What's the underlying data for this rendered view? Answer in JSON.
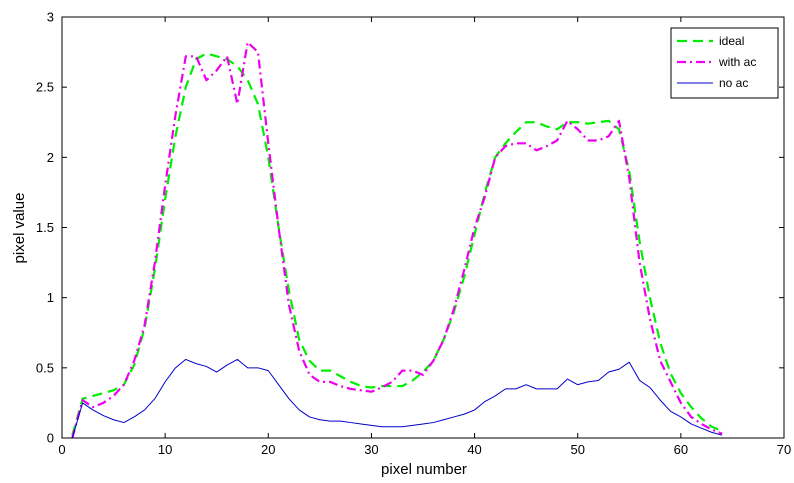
{
  "chart_data": {
    "type": "line",
    "title": "",
    "xlabel": "pixel number",
    "ylabel": "pixel value",
    "xlim": [
      0,
      70
    ],
    "ylim": [
      0,
      3
    ],
    "xticks": [
      0,
      10,
      20,
      30,
      40,
      50,
      60,
      70
    ],
    "yticks": [
      0,
      0.5,
      1,
      1.5,
      2,
      2.5,
      3
    ],
    "xtick_labels": [
      "0",
      "10",
      "20",
      "30",
      "40",
      "50",
      "60",
      "70"
    ],
    "ytick_labels": [
      "0",
      "0.5",
      "1",
      "1.5",
      "2",
      "2.5",
      "3"
    ],
    "grid": false,
    "legend_position": "top-right",
    "series": [
      {
        "name": "ideal",
        "color": "#00ee00",
        "style": "dashed",
        "x": [
          1,
          2,
          3,
          4,
          5,
          6,
          7,
          8,
          9,
          10,
          11,
          12,
          13,
          14,
          15,
          16,
          17,
          18,
          19,
          20,
          21,
          22,
          23,
          24,
          25,
          26,
          27,
          28,
          29,
          30,
          31,
          32,
          33,
          34,
          35,
          36,
          37,
          38,
          39,
          40,
          41,
          42,
          43,
          44,
          45,
          46,
          47,
          48,
          49,
          50,
          51,
          52,
          53,
          54,
          55,
          56,
          57,
          58,
          59,
          60,
          61,
          62,
          63,
          64
        ],
        "y": [
          0.02,
          0.28,
          0.3,
          0.32,
          0.34,
          0.38,
          0.52,
          0.78,
          1.2,
          1.7,
          2.15,
          2.5,
          2.7,
          2.74,
          2.72,
          2.7,
          2.65,
          2.55,
          2.38,
          2.0,
          1.5,
          1.05,
          0.7,
          0.55,
          0.48,
          0.48,
          0.44,
          0.4,
          0.37,
          0.36,
          0.37,
          0.37,
          0.37,
          0.41,
          0.47,
          0.55,
          0.7,
          0.9,
          1.15,
          1.45,
          1.75,
          2.0,
          2.1,
          2.18,
          2.25,
          2.25,
          2.22,
          2.2,
          2.25,
          2.25,
          2.24,
          2.25,
          2.26,
          2.2,
          1.9,
          1.4,
          1.0,
          0.68,
          0.46,
          0.32,
          0.22,
          0.14,
          0.08,
          0.05
        ]
      },
      {
        "name": "with ac",
        "color": "#ee00ee",
        "style": "dashdot",
        "x": [
          1,
          2,
          3,
          4,
          5,
          6,
          7,
          8,
          9,
          10,
          11,
          12,
          13,
          14,
          15,
          16,
          17,
          18,
          19,
          20,
          21,
          22,
          23,
          24,
          25,
          26,
          27,
          28,
          29,
          30,
          31,
          32,
          33,
          34,
          35,
          36,
          37,
          38,
          39,
          40,
          41,
          42,
          43,
          44,
          45,
          46,
          47,
          48,
          49,
          50,
          51,
          52,
          53,
          54,
          55,
          56,
          57,
          58,
          59,
          60,
          61,
          62,
          63,
          64
        ],
        "y": [
          0.0,
          0.27,
          0.22,
          0.25,
          0.3,
          0.38,
          0.55,
          0.8,
          1.25,
          1.8,
          2.3,
          2.72,
          2.72,
          2.55,
          2.62,
          2.72,
          2.38,
          2.82,
          2.75,
          2.1,
          1.5,
          0.95,
          0.62,
          0.45,
          0.4,
          0.4,
          0.37,
          0.35,
          0.34,
          0.33,
          0.36,
          0.4,
          0.48,
          0.48,
          0.45,
          0.55,
          0.7,
          0.92,
          1.2,
          1.5,
          1.72,
          2.0,
          2.08,
          2.1,
          2.1,
          2.05,
          2.08,
          2.12,
          2.26,
          2.2,
          2.12,
          2.12,
          2.15,
          2.26,
          1.85,
          1.25,
          0.85,
          0.55,
          0.4,
          0.25,
          0.15,
          0.1,
          0.06,
          0.03
        ]
      },
      {
        "name": "no ac",
        "color": "#0000cc",
        "style": "solid",
        "x": [
          1,
          2,
          3,
          4,
          5,
          6,
          7,
          8,
          9,
          10,
          11,
          12,
          13,
          14,
          15,
          16,
          17,
          18,
          19,
          20,
          21,
          22,
          23,
          24,
          25,
          26,
          27,
          28,
          29,
          30,
          31,
          32,
          33,
          34,
          35,
          36,
          37,
          38,
          39,
          40,
          41,
          42,
          43,
          44,
          45,
          46,
          47,
          48,
          49,
          50,
          51,
          52,
          53,
          54,
          55,
          56,
          57,
          58,
          59,
          60,
          61,
          62,
          63,
          64
        ],
        "y": [
          0.0,
          0.25,
          0.2,
          0.16,
          0.13,
          0.11,
          0.15,
          0.2,
          0.28,
          0.4,
          0.5,
          0.56,
          0.53,
          0.51,
          0.47,
          0.52,
          0.56,
          0.5,
          0.5,
          0.48,
          0.38,
          0.28,
          0.2,
          0.15,
          0.13,
          0.12,
          0.12,
          0.11,
          0.1,
          0.09,
          0.08,
          0.08,
          0.08,
          0.09,
          0.1,
          0.11,
          0.13,
          0.15,
          0.17,
          0.2,
          0.26,
          0.3,
          0.35,
          0.35,
          0.38,
          0.35,
          0.35,
          0.35,
          0.42,
          0.38,
          0.4,
          0.41,
          0.47,
          0.49,
          0.54,
          0.41,
          0.36,
          0.27,
          0.19,
          0.15,
          0.1,
          0.07,
          0.04,
          0.02
        ]
      }
    ]
  }
}
